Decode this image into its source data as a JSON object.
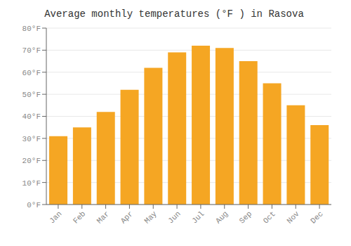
{
  "chart_data": {
    "type": "bar",
    "title": "Average monthly temperatures (°F ) in Rasova",
    "categories": [
      "Jan",
      "Feb",
      "Mar",
      "Apr",
      "May",
      "Jun",
      "Jul",
      "Aug",
      "Sep",
      "Oct",
      "Nov",
      "Dec"
    ],
    "values": [
      31,
      35,
      42,
      52,
      62,
      69,
      72,
      71,
      65,
      55,
      45,
      36
    ],
    "color": "#F5A623",
    "ylim": [
      0,
      80
    ],
    "yticks": [
      {
        "value": 0,
        "label": "0°F"
      },
      {
        "value": 10,
        "label": "10°F"
      },
      {
        "value": 20,
        "label": "20°F"
      },
      {
        "value": 30,
        "label": "30°F"
      },
      {
        "value": 40,
        "label": "40°F"
      },
      {
        "value": 50,
        "label": "50°F"
      },
      {
        "value": 60,
        "label": "60°F"
      },
      {
        "value": 70,
        "label": "70°F"
      },
      {
        "value": 80,
        "label": "80°F"
      }
    ],
    "grid": true
  }
}
